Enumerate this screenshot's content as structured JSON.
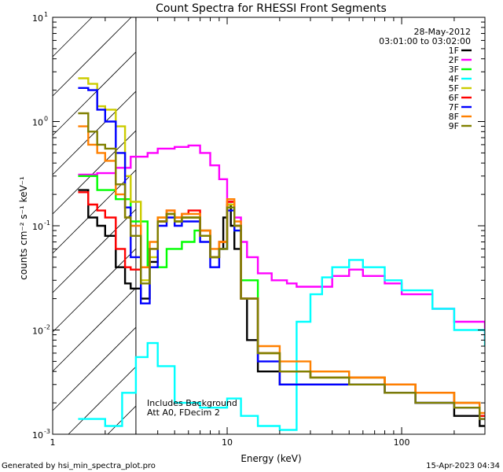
{
  "chart_data": {
    "type": "line",
    "title": "Count Spectra for RHESSI Front Segments",
    "xlabel": "Energy (keV)",
    "ylabel": "counts cm⁻² s⁻¹ keV⁻¹",
    "x_scale": "log",
    "y_scale": "log",
    "xlim": [
      1,
      300
    ],
    "ylim": [
      0.001,
      10
    ],
    "x_ticks": [
      {
        "value": 1,
        "label": "1"
      },
      {
        "value": 10,
        "label": "10"
      },
      {
        "value": 100,
        "label": "100"
      }
    ],
    "y_ticks": [
      {
        "value": 10,
        "label": "10",
        "exp": "1"
      },
      {
        "value": 1,
        "label": "10",
        "exp": "0"
      },
      {
        "value": 0.1,
        "label": "10",
        "exp": "-1"
      },
      {
        "value": 0.01,
        "label": "10",
        "exp": "-2"
      },
      {
        "value": 0.001,
        "label": "10",
        "exp": "-3"
      }
    ],
    "hatched_region": [
      1,
      3
    ],
    "legend_position": "top-right",
    "info_text": [
      "28-May-2012",
      "03:01:00 to 03:02:00"
    ],
    "annotations": [
      "Includes Background",
      "Att A0, FDecim 2"
    ],
    "series": [
      {
        "name": "1F",
        "color": "#000000",
        "x": [
          1.4,
          1.6,
          1.8,
          2.0,
          2.3,
          2.6,
          2.8,
          3.2,
          3.6,
          4.0,
          4.5,
          5.0,
          5.5,
          6.0,
          7.0,
          8.0,
          9.0,
          9.5,
          10.0,
          10.5,
          11.0,
          12.0,
          13.0,
          15.0,
          20.0,
          30.0,
          50.0,
          80.0,
          120.0,
          200.0,
          280.0
        ],
        "y": [
          0.22,
          0.12,
          0.1,
          0.08,
          0.04,
          0.028,
          0.025,
          0.02,
          0.045,
          0.11,
          0.13,
          0.11,
          0.12,
          0.12,
          0.08,
          0.05,
          0.06,
          0.12,
          0.16,
          0.1,
          0.06,
          0.02,
          0.008,
          0.004,
          0.003,
          0.003,
          0.003,
          0.0025,
          0.002,
          0.0015,
          0.0012
        ]
      },
      {
        "name": "2F",
        "color": "#ff00ff",
        "x": [
          1.4,
          1.8,
          2.3,
          2.8,
          3.5,
          4.0,
          5.0,
          6.0,
          7.0,
          8.0,
          9.0,
          10.0,
          11.0,
          12.0,
          13.0,
          15.0,
          18.0,
          22.0,
          25.0,
          30.0,
          40.0,
          50.0,
          60.0,
          80.0,
          100.0,
          150.0,
          200.0,
          300.0
        ],
        "y": [
          0.31,
          0.32,
          0.36,
          0.46,
          0.5,
          0.55,
          0.57,
          0.59,
          0.5,
          0.38,
          0.28,
          0.17,
          0.12,
          0.07,
          0.05,
          0.035,
          0.03,
          0.028,
          0.026,
          0.026,
          0.033,
          0.038,
          0.033,
          0.028,
          0.022,
          0.016,
          0.012,
          0.008
        ]
      },
      {
        "name": "3F",
        "color": "#00ff00",
        "x": [
          1.4,
          1.8,
          2.3,
          2.8,
          3.5,
          4.5,
          5.5,
          6.5,
          8.0,
          9.0,
          10.0,
          11.0,
          12.0,
          15.0,
          20.0,
          30.0,
          50.0,
          80.0,
          120.0,
          200.0,
          280.0
        ],
        "y": [
          0.3,
          0.22,
          0.18,
          0.11,
          0.04,
          0.06,
          0.07,
          0.09,
          0.05,
          0.06,
          0.15,
          0.09,
          0.03,
          0.006,
          0.004,
          0.0035,
          0.0035,
          0.003,
          0.0025,
          0.002,
          0.0015
        ]
      },
      {
        "name": "4F",
        "color": "#00ffff",
        "x": [
          1.4,
          1.6,
          2.0,
          2.5,
          3.0,
          3.5,
          4.0,
          5.0,
          7.0,
          10.0,
          12.0,
          15.0,
          20.0,
          25.0,
          30.0,
          35.0,
          40.0,
          50.0,
          60.0,
          80.0,
          100.0,
          150.0,
          200.0,
          300.0
        ],
        "y": [
          0.0014,
          0.0014,
          0.0012,
          0.0025,
          0.0055,
          0.0075,
          0.0045,
          0.002,
          0.0018,
          0.0022,
          0.0015,
          0.0012,
          0.0011,
          0.012,
          0.022,
          0.032,
          0.04,
          0.047,
          0.04,
          0.03,
          0.024,
          0.016,
          0.01,
          0.007
        ]
      },
      {
        "name": "5F",
        "color": "#cccc00",
        "x": [
          1.4,
          1.6,
          1.8,
          2.0,
          2.3,
          2.6,
          2.8,
          3.2,
          3.6,
          4.0,
          4.5,
          5.0,
          5.5,
          6.0,
          7.0,
          8.0,
          9.0,
          10.0,
          11.0,
          12.0,
          15.0,
          20.0,
          30.0,
          50.0,
          80.0,
          120.0,
          200.0,
          280.0
        ],
        "y": [
          2.6,
          2.3,
          1.4,
          1.3,
          0.9,
          0.3,
          0.17,
          0.03,
          0.05,
          0.12,
          0.13,
          0.11,
          0.12,
          0.12,
          0.08,
          0.05,
          0.07,
          0.16,
          0.1,
          0.02,
          0.006,
          0.004,
          0.004,
          0.0035,
          0.003,
          0.0025,
          0.002,
          0.0015
        ]
      },
      {
        "name": "6F",
        "color": "#ff0000",
        "x": [
          1.4,
          1.6,
          1.8,
          2.0,
          2.3,
          2.6,
          2.8,
          3.2,
          3.6,
          4.0,
          4.5,
          5.0,
          5.5,
          6.0,
          7.0,
          8.0,
          9.0,
          10.0,
          11.0,
          12.0,
          15.0,
          20.0,
          30.0,
          50.0,
          80.0,
          120.0,
          200.0,
          280.0
        ],
        "y": [
          0.21,
          0.16,
          0.14,
          0.12,
          0.06,
          0.04,
          0.038,
          0.04,
          0.06,
          0.11,
          0.14,
          0.12,
          0.13,
          0.14,
          0.09,
          0.05,
          0.07,
          0.17,
          0.1,
          0.02,
          0.006,
          0.004,
          0.0035,
          0.0035,
          0.003,
          0.0025,
          0.002,
          0.0015
        ]
      },
      {
        "name": "7F",
        "color": "#0000ff",
        "x": [
          1.4,
          1.6,
          1.8,
          2.0,
          2.3,
          2.6,
          2.8,
          3.2,
          3.6,
          4.0,
          4.5,
          5.0,
          5.5,
          6.0,
          7.0,
          8.0,
          9.0,
          10.0,
          11.0,
          12.0,
          15.0,
          20.0,
          30.0,
          50.0,
          80.0,
          120.0,
          200.0,
          280.0
        ],
        "y": [
          2.1,
          2.0,
          1.3,
          1.0,
          0.5,
          0.15,
          0.05,
          0.018,
          0.04,
          0.1,
          0.12,
          0.1,
          0.11,
          0.11,
          0.07,
          0.04,
          0.06,
          0.14,
          0.09,
          0.02,
          0.005,
          0.003,
          0.003,
          0.003,
          0.0025,
          0.002,
          0.0018,
          0.0014
        ]
      },
      {
        "name": "8F",
        "color": "#ff8000",
        "x": [
          1.4,
          1.6,
          1.8,
          2.0,
          2.3,
          2.6,
          2.8,
          3.2,
          3.6,
          4.0,
          4.5,
          5.0,
          5.5,
          6.0,
          7.0,
          8.0,
          9.0,
          10.0,
          11.0,
          12.0,
          15.0,
          20.0,
          30.0,
          50.0,
          80.0,
          120.0,
          200.0,
          280.0
        ],
        "y": [
          0.9,
          0.6,
          0.5,
          0.42,
          0.2,
          0.12,
          0.1,
          0.04,
          0.07,
          0.12,
          0.14,
          0.12,
          0.13,
          0.13,
          0.09,
          0.06,
          0.07,
          0.18,
          0.11,
          0.02,
          0.007,
          0.005,
          0.004,
          0.0035,
          0.003,
          0.0025,
          0.002,
          0.0016
        ]
      },
      {
        "name": "9F",
        "color": "#808000",
        "x": [
          1.4,
          1.6,
          1.8,
          2.0,
          2.3,
          2.6,
          2.8,
          3.2,
          3.6,
          4.0,
          4.5,
          5.0,
          5.5,
          6.0,
          7.0,
          8.0,
          9.0,
          10.0,
          11.0,
          12.0,
          15.0,
          20.0,
          30.0,
          50.0,
          80.0,
          120.0,
          200.0,
          280.0
        ],
        "y": [
          1.2,
          0.8,
          0.6,
          0.55,
          0.25,
          0.12,
          0.08,
          0.028,
          0.06,
          0.11,
          0.13,
          0.11,
          0.12,
          0.12,
          0.08,
          0.05,
          0.06,
          0.15,
          0.1,
          0.02,
          0.006,
          0.004,
          0.0035,
          0.003,
          0.0025,
          0.002,
          0.0018,
          0.0014
        ]
      }
    ]
  },
  "footer": {
    "left": "Generated by hsi_min_spectra_plot.pro",
    "right": "15-Apr-2023 04:34"
  }
}
